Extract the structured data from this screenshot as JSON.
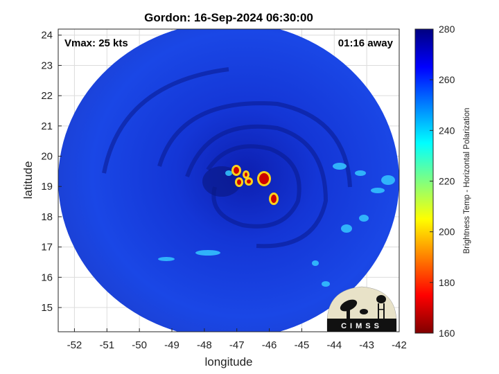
{
  "title": "Gordon: 16-Sep-2024 06:30:00",
  "vmax_label": "Vmax: 25 kts",
  "time_away_label": "01:16 away",
  "x_axis": {
    "label": "longitude",
    "range": [
      -52.5,
      -42
    ],
    "ticks": [
      -52,
      -51,
      -50,
      -49,
      -48,
      -47,
      -46,
      -45,
      -44,
      -43,
      -42
    ]
  },
  "y_axis": {
    "label": "latitude",
    "range": [
      14.2,
      24.2
    ],
    "ticks": [
      15,
      16,
      17,
      18,
      19,
      20,
      21,
      22,
      23,
      24
    ]
  },
  "colorbar": {
    "label": "Brightness Temp - Horizontal Polarization",
    "range": [
      160,
      280
    ],
    "ticks": [
      160,
      180,
      200,
      220,
      240,
      260,
      280
    ],
    "colors": [
      "#800000",
      "#ff0000",
      "#ff8000",
      "#ffff00",
      "#80ff80",
      "#00ffff",
      "#0080ff",
      "#0000ff",
      "#000080"
    ]
  },
  "logo": {
    "text": "CIMSS"
  },
  "swath": {
    "center_lon": -47.25,
    "center_lat": 19.2,
    "radius_deg": 5.25
  }
}
